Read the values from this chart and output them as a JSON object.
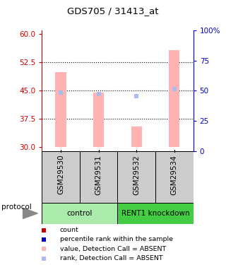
{
  "title": "GDS705 / 31413_at",
  "samples": [
    "GSM29530",
    "GSM29531",
    "GSM29532",
    "GSM29534"
  ],
  "bar_values": [
    50.0,
    44.5,
    35.5,
    55.8
  ],
  "bar_bottom": 30,
  "rank_values": [
    44.5,
    44.2,
    43.5,
    45.5
  ],
  "bar_color": "#ffb3b3",
  "rank_color": "#aabbee",
  "ylim_left": [
    29,
    61
  ],
  "ylim_right": [
    0,
    100
  ],
  "yticks_left": [
    30,
    37.5,
    45,
    52.5,
    60
  ],
  "yticks_right": [
    0,
    25,
    50,
    75,
    100
  ],
  "ytick_labels_right": [
    "0",
    "25",
    "50",
    "75",
    "100%"
  ],
  "dotted_lines": [
    37.5,
    45,
    52.5
  ],
  "groups": [
    {
      "label": "control",
      "samples": [
        0,
        1
      ],
      "color": "#aaeaaa"
    },
    {
      "label": "RENT1 knockdown",
      "samples": [
        2,
        3
      ],
      "color": "#44cc44"
    }
  ],
  "protocol_label": "protocol",
  "left_axis_color": "#cc0000",
  "right_axis_color": "#0000cc",
  "sample_bg_color": "#cccccc",
  "legend_items": [
    {
      "color": "#cc0000",
      "label": "count"
    },
    {
      "color": "#0000cc",
      "label": "percentile rank within the sample"
    },
    {
      "color": "#ffb3b3",
      "label": "value, Detection Call = ABSENT"
    },
    {
      "color": "#aabbee",
      "label": "rank, Detection Call = ABSENT"
    }
  ]
}
